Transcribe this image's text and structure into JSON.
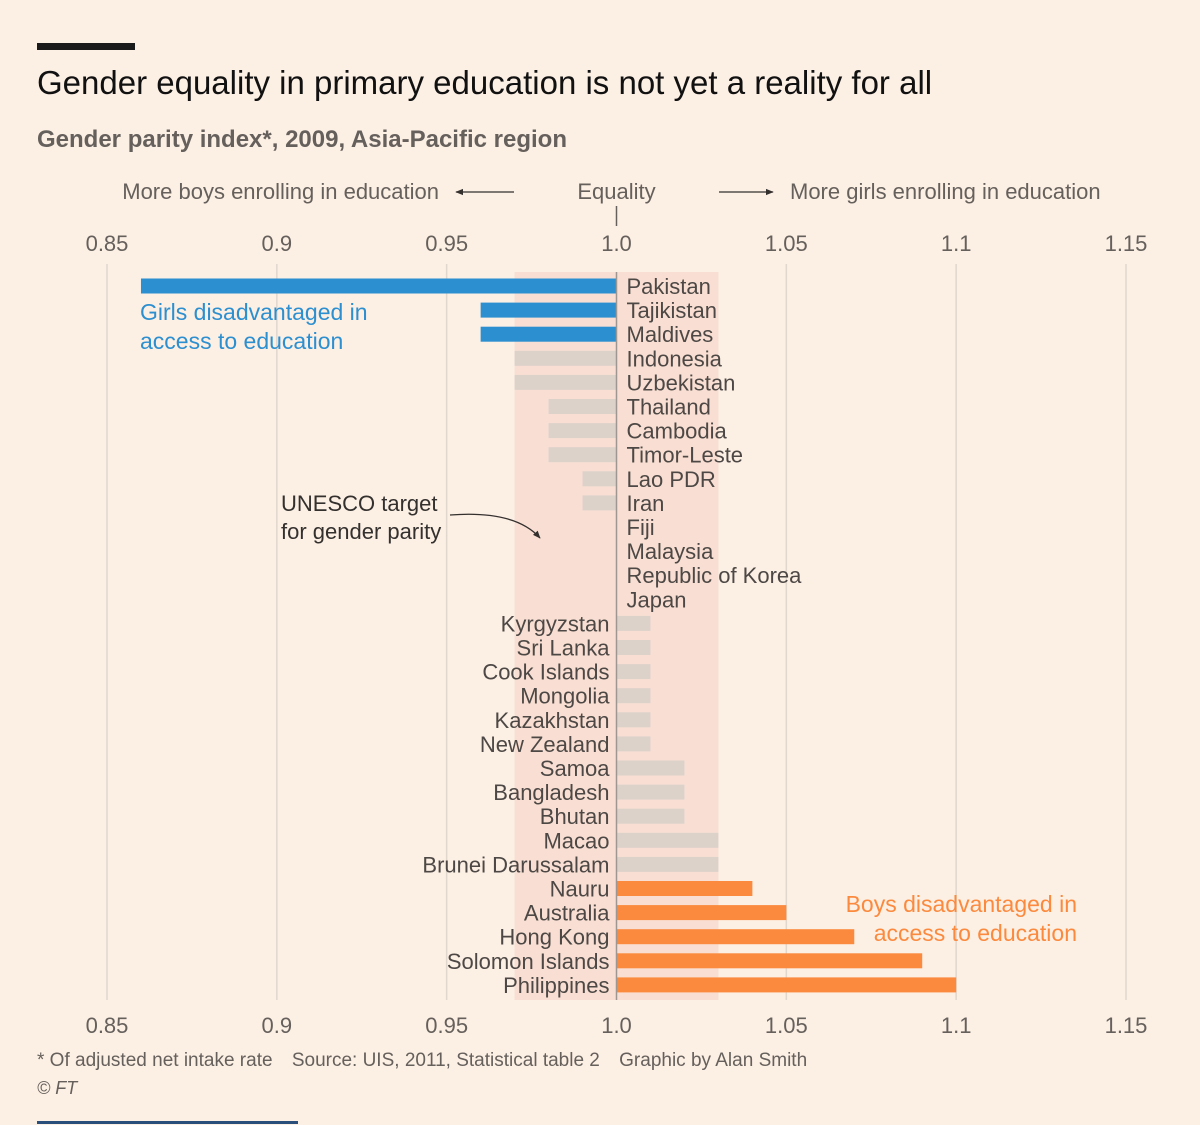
{
  "title": "Gender equality in primary education is not yet a reality for all",
  "subtitle": "Gender parity index*, 2009, Asia-Pacific region",
  "colors": {
    "background": "#fcefe4",
    "girls_disadvantaged": "#2c8fd0",
    "boys_disadvantaged": "#fb8a3e",
    "neutral": "#dcd2ca",
    "target_band": "#f9dfd3",
    "gridline": "#e2d7cd"
  },
  "chart_data": {
    "type": "bar",
    "orientation": "horizontal",
    "title": "Gender equality in primary education is not yet a reality for all",
    "subtitle": "Gender parity index*, 2009, Asia-Pacific region",
    "baseline": 1.0,
    "xlim": [
      0.85,
      1.15
    ],
    "xticks": [
      0.85,
      0.9,
      0.95,
      1.0,
      1.05,
      1.1,
      1.15
    ],
    "tick_labels": [
      "0.85",
      "0.9",
      "0.95",
      "1.0",
      "1.05",
      "1.1",
      "1.15"
    ],
    "direction_labels": {
      "left": "More boys enrolling in education",
      "center": "Equality",
      "right": "More girls enrolling in education"
    },
    "target_band": [
      0.97,
      1.03
    ],
    "target_label": [
      "UNESCO target",
      "for gender parity"
    ],
    "group_labels": {
      "girls": [
        "Girls disadvantaged in",
        "access to education"
      ],
      "boys": [
        "Boys disadvantaged in",
        "access to education"
      ]
    },
    "categories": [
      "Pakistan",
      "Tajikistan",
      "Maldives",
      "Indonesia",
      "Uzbekistan",
      "Thailand",
      "Cambodia",
      "Timor-Leste",
      "Lao PDR",
      "Iran",
      "Fiji",
      "Malaysia",
      "Republic of Korea",
      "Japan",
      "Kyrgyzstan",
      "Sri Lanka",
      "Cook Islands",
      "Mongolia",
      "Kazakhstan",
      "New Zealand",
      "Samoa",
      "Bangladesh",
      "Bhutan",
      "Macao",
      "Brunei Darussalam",
      "Nauru",
      "Australia",
      "Hong Kong",
      "Solomon Islands",
      "Philippines"
    ],
    "values": [
      0.86,
      0.96,
      0.96,
      0.97,
      0.97,
      0.98,
      0.98,
      0.98,
      0.99,
      0.99,
      1.0,
      1.0,
      1.0,
      1.0,
      1.01,
      1.01,
      1.01,
      1.01,
      1.01,
      1.01,
      1.02,
      1.02,
      1.02,
      1.03,
      1.03,
      1.04,
      1.05,
      1.07,
      1.09,
      1.1
    ],
    "groups": [
      "girls",
      "girls",
      "girls",
      "neutral",
      "neutral",
      "neutral",
      "neutral",
      "neutral",
      "neutral",
      "neutral",
      "neutral",
      "neutral",
      "neutral",
      "neutral",
      "neutral",
      "neutral",
      "neutral",
      "neutral",
      "neutral",
      "neutral",
      "neutral",
      "neutral",
      "neutral",
      "neutral",
      "neutral",
      "boys",
      "boys",
      "boys",
      "boys",
      "boys"
    ]
  },
  "footer": {
    "note": "* Of adjusted net intake rate",
    "source": "Source: UIS, 2011, Statistical table 2",
    "credit": "Graphic by Alan Smith",
    "copyright": "© FT"
  }
}
